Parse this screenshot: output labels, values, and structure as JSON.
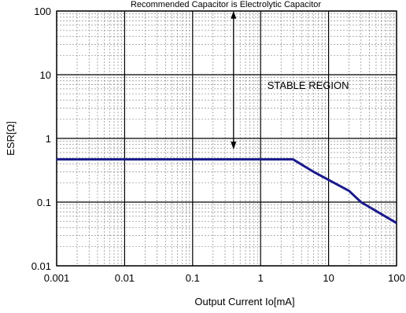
{
  "chart_data": {
    "type": "line",
    "title": "Recommended Capacitor is Electrolytic Capacitor",
    "xlabel": "Output Current Io[mA]",
    "ylabel": "ESR[Ω]",
    "xscale": "log",
    "yscale": "log",
    "xlim": [
      0.001,
      100
    ],
    "ylim": [
      0.01,
      100
    ],
    "x_ticks": [
      0.001,
      0.01,
      0.1,
      1,
      10,
      100
    ],
    "x_tick_labels": [
      "0.001",
      "0.01",
      "0.1",
      "1",
      "10",
      "100"
    ],
    "y_ticks": [
      0.01,
      0.1,
      1,
      10,
      100
    ],
    "y_tick_labels": [
      "0.01",
      "0.1",
      "1",
      "10",
      "100"
    ],
    "grid": "major and minor",
    "series": [
      {
        "color": "#1a1a8c",
        "x": [
          0.001,
          3,
          6,
          20,
          30,
          100
        ],
        "y": [
          0.47,
          0.47,
          0.3,
          0.15,
          0.1,
          0.047
        ]
      }
    ],
    "annotations": [
      {
        "text": "STABLE REGION",
        "x": 5,
        "y": 6
      },
      {
        "type": "double-arrow",
        "x": 0.4,
        "y_from": 0.75,
        "y_to": 90
      }
    ]
  }
}
